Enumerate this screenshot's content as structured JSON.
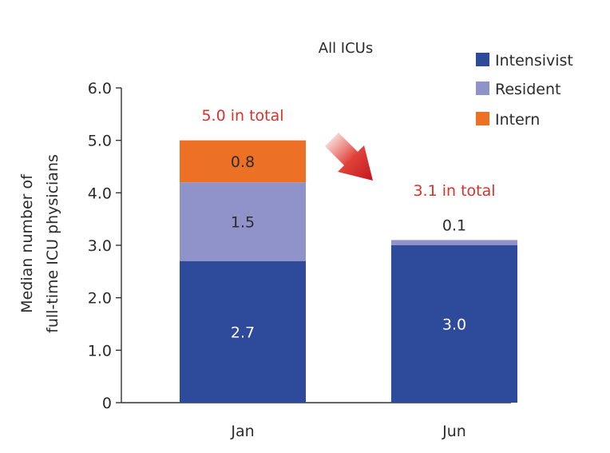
{
  "chart_data": {
    "type": "bar",
    "stacked": true,
    "title": "All ICUs",
    "ylabel_lines": [
      "Median number of",
      "full-time ICU physicians"
    ],
    "xlabel": "",
    "ylim": [
      0,
      6
    ],
    "yticks": [
      "0",
      "1.0",
      "2.0",
      "3.0",
      "4.0",
      "5.0",
      "6.0"
    ],
    "categories": [
      "Jan",
      "Jun"
    ],
    "series": [
      {
        "name": "Intensivist",
        "values": [
          2.7,
          3.0
        ],
        "color": "#2e4a9a"
      },
      {
        "name": "Resident",
        "values": [
          1.5,
          0.1
        ],
        "color": "#8f93c9"
      },
      {
        "name": "Intern",
        "values": [
          0.8,
          0.0
        ],
        "color": "#ec7125"
      }
    ],
    "value_labels": [
      [
        "2.7",
        "3.0"
      ],
      [
        "1.5",
        "0.1"
      ],
      [
        "0.8",
        ""
      ]
    ],
    "totals": [
      "5.0 in total",
      "3.1 in total"
    ],
    "total_color": "#d9312b",
    "legend_position": "top-right",
    "grid": false,
    "arrow_color": "#d9312b"
  }
}
